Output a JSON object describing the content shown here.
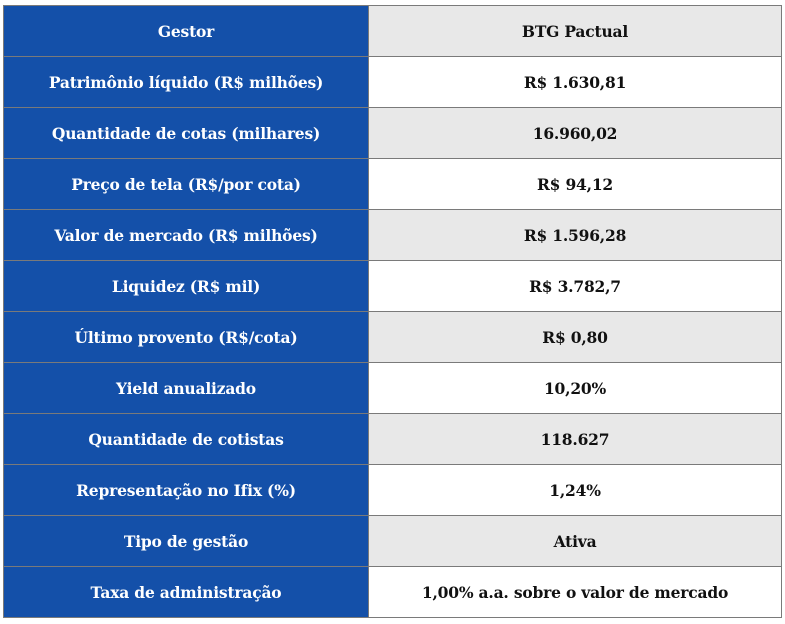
{
  "table": {
    "rows": [
      {
        "label": "Gestor",
        "value": "BTG Pactual"
      },
      {
        "label": "Patrimônio líquido (R$ milhões)",
        "value": "R$ 1.630,81"
      },
      {
        "label": "Quantidade de cotas (milhares)",
        "value": "16.960,02"
      },
      {
        "label": "Preço de tela (R$/por cota)",
        "value": "R$ 94,12"
      },
      {
        "label": "Valor de mercado (R$ milhões)",
        "value": "R$ 1.596,28"
      },
      {
        "label": "Liquidez (R$ mil)",
        "value": "R$ 3.782,7"
      },
      {
        "label": "Último provento (R$/cota)",
        "value": "R$ 0,80"
      },
      {
        "label": "Yield anualizado",
        "value": "10,20%"
      },
      {
        "label": "Quantidade de cotistas",
        "value": "118.627"
      },
      {
        "label": "Representação no Ifix (%)",
        "value": "1,24%"
      },
      {
        "label": "Tipo de gestão",
        "value": "Ativa"
      },
      {
        "label": "Taxa de administração",
        "value": "1,00% a.a. sobre o valor de mercado"
      }
    ]
  },
  "colors": {
    "label_background": "#1450a9",
    "label_text": "#ffffff",
    "value_shaded_background": "#e8e8e8",
    "value_plain_background": "#ffffff",
    "border": "#7a7a7a"
  }
}
